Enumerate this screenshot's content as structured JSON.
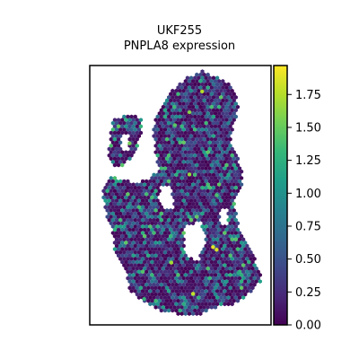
{
  "chart_data": {
    "type": "scatter",
    "title_lines": [
      "UKF255",
      "PNPLA8 expression"
    ],
    "xlabel": "",
    "ylabel": "",
    "colorbar": {
      "label": "",
      "min": 0.0,
      "max": 1.97,
      "colormap": "viridis",
      "ticks": [
        0.0,
        0.25,
        0.5,
        0.75,
        1.0,
        1.25,
        1.5,
        1.75
      ],
      "tick_labels": [
        "0.00",
        "0.25",
        "0.50",
        "0.75",
        "1.00",
        "1.25",
        "1.50",
        "1.75"
      ]
    },
    "grid": false,
    "legend": "none",
    "marker": "hexagon",
    "spot_values_summary": "Spatial spots mostly low expression (0.0-0.5) with scattered higher values up to ~1.9",
    "highlight_spots": [
      {
        "x": 0.62,
        "y": 0.1,
        "value": 1.75
      },
      {
        "x": 0.55,
        "y": 0.18,
        "value": 1.6
      },
      {
        "x": 0.47,
        "y": 0.23,
        "value": 1.45
      },
      {
        "x": 0.22,
        "y": 0.3,
        "value": 1.55
      },
      {
        "x": 0.55,
        "y": 0.42,
        "value": 1.65
      },
      {
        "x": 0.7,
        "y": 0.5,
        "value": 1.4
      },
      {
        "x": 0.68,
        "y": 0.7,
        "value": 1.9
      },
      {
        "x": 0.7,
        "y": 0.71,
        "value": 1.85
      },
      {
        "x": 0.45,
        "y": 0.76,
        "value": 1.7
      },
      {
        "x": 0.57,
        "y": 0.88,
        "value": 1.8
      },
      {
        "x": 0.3,
        "y": 0.9,
        "value": 1.3
      },
      {
        "x": 0.82,
        "y": 0.8,
        "value": 1.2
      }
    ]
  },
  "colors": {
    "viridis": [
      "#440154",
      "#482878",
      "#3e4989",
      "#31688e",
      "#26828e",
      "#1f9e89",
      "#35b779",
      "#6ece58",
      "#b5de2b",
      "#fde725"
    ]
  }
}
